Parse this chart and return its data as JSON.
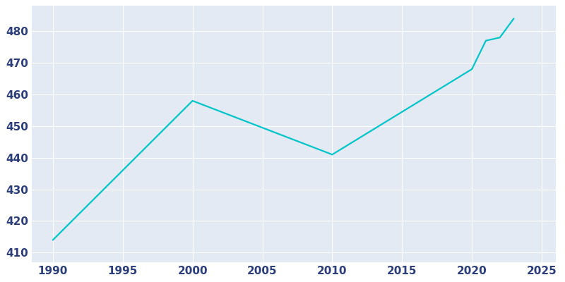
{
  "years": [
    1990,
    2000,
    2010,
    2020,
    2021,
    2022,
    2023
  ],
  "population": [
    414,
    458,
    441,
    468,
    477,
    478,
    484
  ],
  "line_color": "#00C5C8",
  "plot_bg_color": "#E3EAF4",
  "fig_bg_color": "#FFFFFF",
  "grid_color": "#FFFFFF",
  "tick_color": "#2C3E7A",
  "xlim": [
    1988.5,
    2026
  ],
  "ylim": [
    407,
    488
  ],
  "xticks": [
    1990,
    1995,
    2000,
    2005,
    2010,
    2015,
    2020,
    2025
  ],
  "yticks": [
    410,
    420,
    430,
    440,
    450,
    460,
    470,
    480
  ],
  "linewidth": 1.6,
  "tick_fontsize": 11
}
